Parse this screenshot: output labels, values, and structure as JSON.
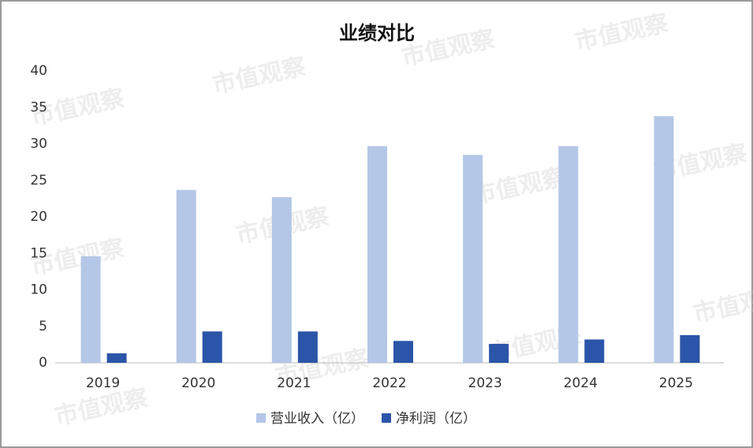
{
  "chart_data": {
    "type": "bar",
    "title": "业绩对比",
    "categories": [
      "2019",
      "2020",
      "2021",
      "2022",
      "2023",
      "2024",
      "2025"
    ],
    "series": [
      {
        "name": "营业收入（亿）",
        "color": "#b4c7e7",
        "values": [
          14.6,
          23.7,
          22.7,
          29.7,
          28.5,
          29.7,
          33.8
        ]
      },
      {
        "name": "净利润（亿）",
        "color": "#2b55a8",
        "values": [
          1.3,
          4.3,
          4.3,
          3.0,
          2.6,
          3.2,
          3.8
        ]
      }
    ],
    "ylim": [
      0,
      40
    ],
    "yticks": [
      0,
      5,
      10,
      15,
      20,
      25,
      30,
      35,
      40
    ],
    "grid": false,
    "legend": "bottom",
    "watermark": "市值观察"
  }
}
